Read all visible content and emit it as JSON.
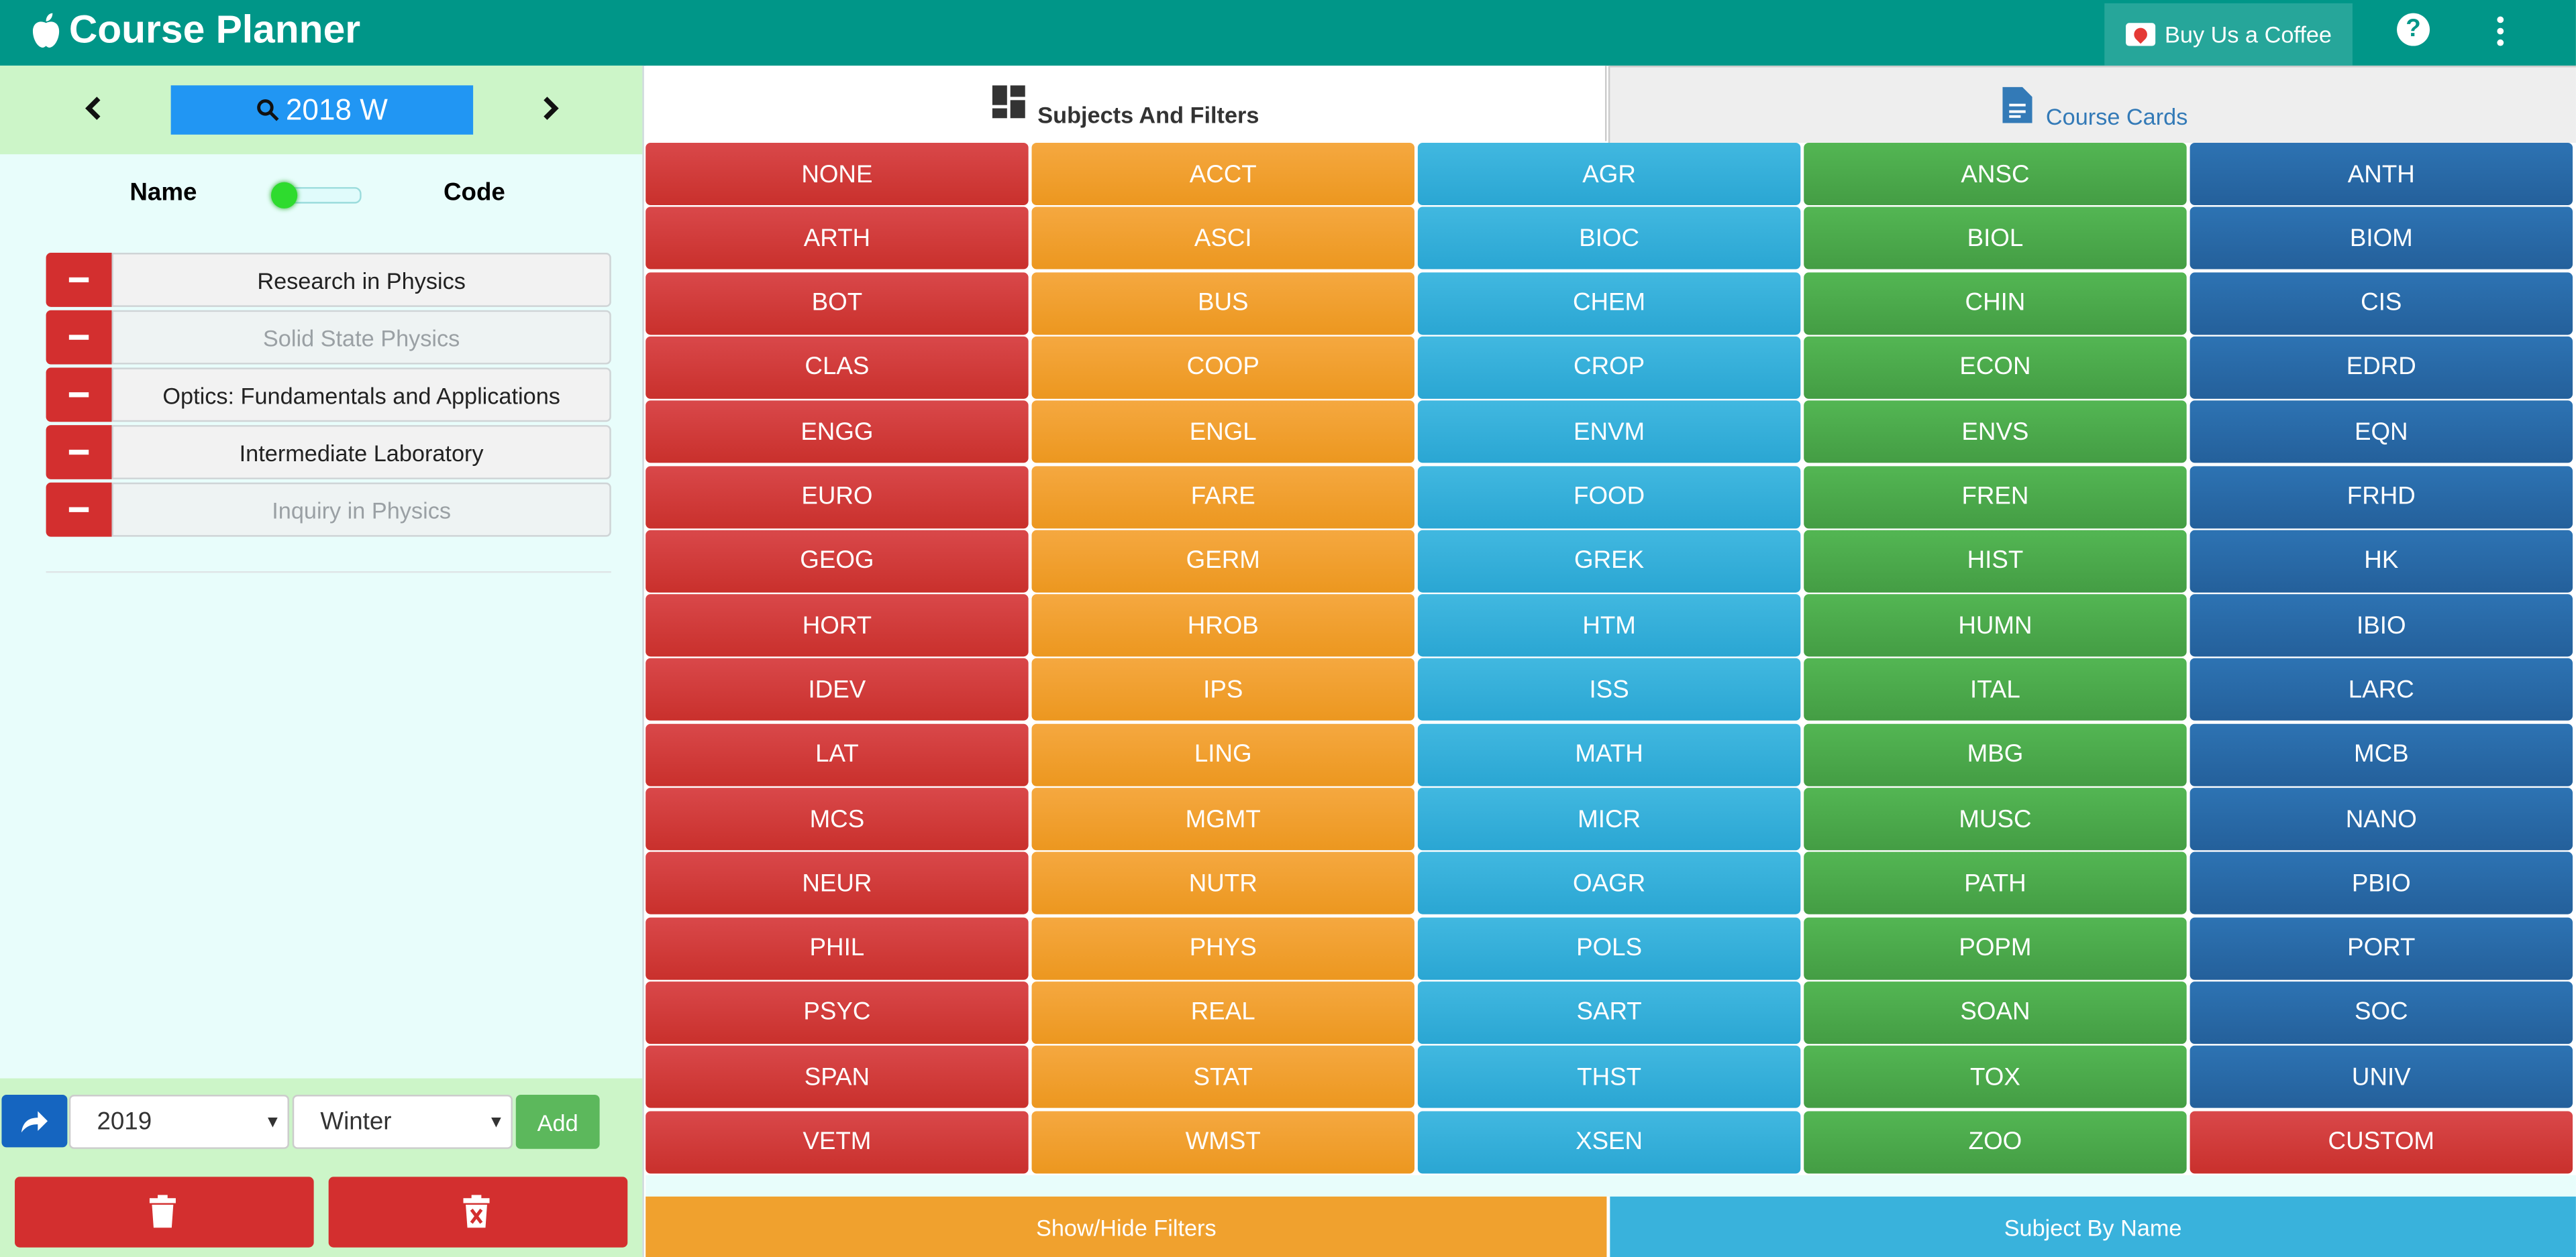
{
  "header": {
    "title": "Course Planner",
    "coffee_label": "Buy Us a Coffee",
    "help_label": "?"
  },
  "sidebar": {
    "term": "2018 W",
    "toggle": {
      "left": "Name",
      "right": "Code"
    },
    "courses": [
      {
        "name": "Research in Physics",
        "dim": false
      },
      {
        "name": "Solid State Physics",
        "dim": true
      },
      {
        "name": "Optics: Fundamentals and Applications",
        "dim": false
      },
      {
        "name": "Intermediate Laboratory",
        "dim": false
      },
      {
        "name": "Inquiry in Physics",
        "dim": true
      }
    ],
    "year_value": "2019",
    "season_value": "Winter",
    "add_label": "Add"
  },
  "tabs": [
    {
      "label": "Subjects And Filters",
      "active": true
    },
    {
      "label": "Course Cards",
      "active": false
    }
  ],
  "colors": {
    "red": "#c9302c",
    "orange": "#ec971f",
    "cyan": "#2aa6d3",
    "green": "#449d44",
    "blue": "#24609b",
    "header": "#009688"
  },
  "subject_columns": [
    {
      "color": "red",
      "items": [
        "NONE",
        "ARTH",
        "BOT",
        "CLAS",
        "ENGG",
        "EURO",
        "GEOG",
        "HORT",
        "IDEV",
        "LAT",
        "MCS",
        "NEUR",
        "PHIL",
        "PSYC",
        "SPAN",
        "VETM"
      ]
    },
    {
      "color": "orange",
      "items": [
        "ACCT",
        "ASCI",
        "BUS",
        "COOP",
        "ENGL",
        "FARE",
        "GERM",
        "HROB",
        "IPS",
        "LING",
        "MGMT",
        "NUTR",
        "PHYS",
        "REAL",
        "STAT",
        "WMST"
      ]
    },
    {
      "color": "cyan",
      "items": [
        "AGR",
        "BIOC",
        "CHEM",
        "CROP",
        "ENVM",
        "FOOD",
        "GREK",
        "HTM",
        "ISS",
        "MATH",
        "MICR",
        "OAGR",
        "POLS",
        "SART",
        "THST",
        "XSEN"
      ]
    },
    {
      "color": "green",
      "items": [
        "ANSC",
        "BIOL",
        "CHIN",
        "ECON",
        "ENVS",
        "FREN",
        "HIST",
        "HUMN",
        "ITAL",
        "MBG",
        "MUSC",
        "PATH",
        "POPM",
        "SOAN",
        "TOX",
        "ZOO"
      ]
    },
    {
      "color": "blue",
      "items": [
        "ANTH",
        "BIOM",
        "CIS",
        "EDRD",
        "EQN",
        "FRHD",
        "HK",
        "IBIO",
        "LARC",
        "MCB",
        "NANO",
        "PBIO",
        "PORT",
        "SOC",
        "UNIV",
        "CUSTOM"
      ]
    }
  ],
  "bottom": {
    "showhide_label": "Show/Hide Filters",
    "byname_label": "Subject By Name"
  }
}
